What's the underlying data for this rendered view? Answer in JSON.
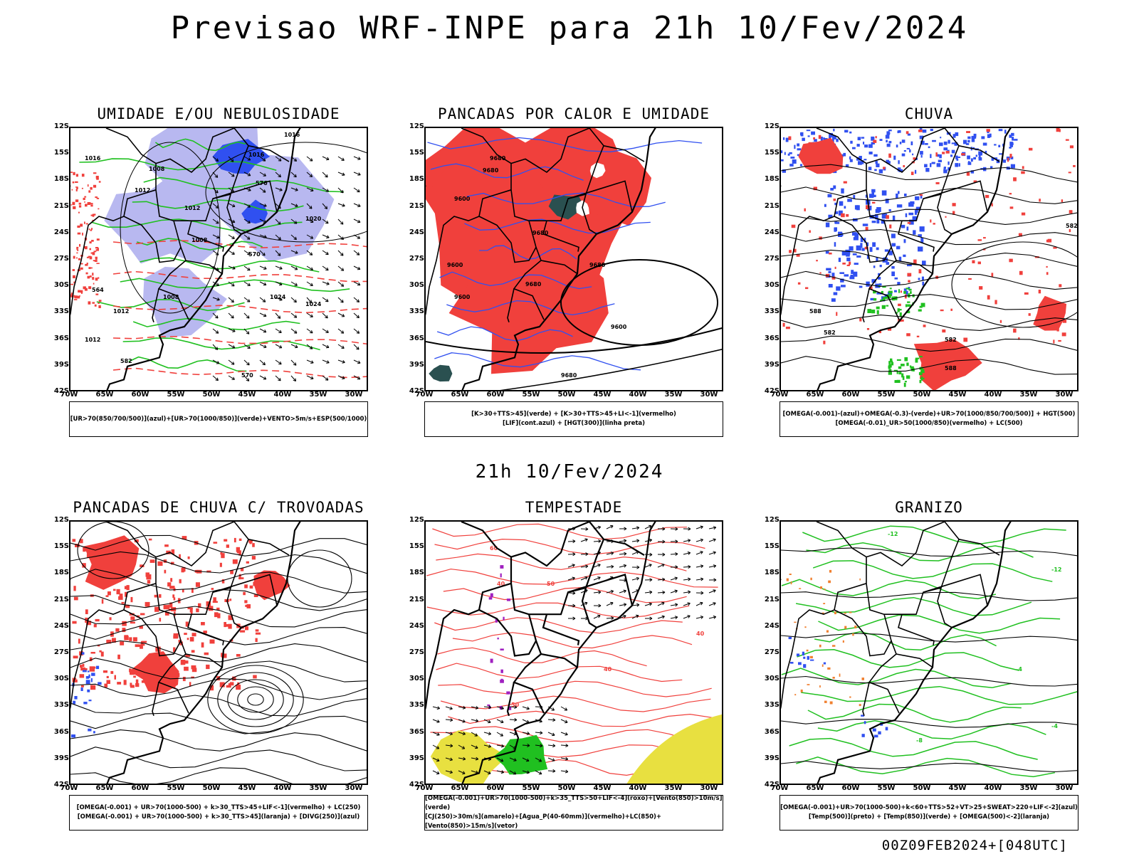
{
  "header": {
    "title": "Previsao WRF-INPE  para 21h 10/Fev/2024",
    "subtitle": "21h 10/Fev/2024",
    "footer": "00Z09FEB2024+[048UTC]"
  },
  "axes": {
    "lat_labels": [
      "12S",
      "15S",
      "18S",
      "21S",
      "24S",
      "27S",
      "30S",
      "33S",
      "36S",
      "39S",
      "42S"
    ],
    "lon_labels": [
      "70W",
      "65W",
      "60W",
      "55W",
      "50W",
      "45W",
      "40W",
      "35W",
      "30W"
    ],
    "lat_values": [
      -12,
      -15,
      -18,
      -21,
      -24,
      -27,
      -30,
      -33,
      -36,
      -39,
      -42
    ],
    "lon_values": [
      -70,
      -65,
      -60,
      -55,
      -50,
      -45,
      -40,
      -35,
      -30
    ]
  },
  "colors": {
    "red": "#f0403c",
    "blue": "#3050f0",
    "lavender": "#b8b8f0",
    "green": "#20c020",
    "darkteal": "#2a5050",
    "yellow": "#e8e040",
    "purple": "#a020c0",
    "orange": "#f08030"
  },
  "panels": [
    {
      "title": "UMIDADE E/OU NEBULOSIDADE",
      "legend": [
        "[UR>70(850/700/500)](azul)+[UR>70(1000/850)](verde)+VENTO>5m/s+ESP(500/1000)"
      ],
      "contour_labels": [
        "1016",
        "1008",
        "1012",
        "1016",
        "1012",
        "1008",
        "1012",
        "1008",
        "1024",
        "1020",
        "1024",
        "1012",
        "1016",
        "576",
        "570",
        "564",
        "582",
        "570"
      ]
    },
    {
      "title": "PANCADAS POR CALOR E UMIDADE",
      "legend": [
        "[K>30+TTS>45](verde) + [K>30+TTS>45+LI<-1](vermelho)",
        "[LIF](cont.azul) + [HGT(300)](linha preta)"
      ],
      "contour_labels": [
        "9680",
        "9680",
        "9600",
        "9680",
        "9600",
        "9680",
        "9600",
        "9680",
        "9600",
        "9680"
      ]
    },
    {
      "title": "CHUVA",
      "legend": [
        "[OMEGA(-0.001)-(azul)+OMEGA(-0.3)-(verde)+UR>70(1000/850/700/500)] + HGT(500)",
        "[OMEGA(-0.01)_UR>50(1000/850)(vermelho) + LC(500)"
      ],
      "contour_labels": [
        "588",
        "582",
        "582",
        "588",
        "582"
      ]
    },
    {
      "title": "PANCADAS DE CHUVA C/ TROVOADAS",
      "legend": [
        "[OMEGA(-0.001) + UR>70(1000-500) + k>30_TTS>45+LIF<-1](vermelho) + LC(250)",
        "[OMEGA(-0.001) + UR>70(1000-500) + k>30_TTS>45](laranja) + [DIVG(250)](azul)"
      ],
      "contour_labels": []
    },
    {
      "title": "TEMPESTADE",
      "legend": [
        "[OMEGA(-0.001)+UR>70(1000-500)+k>35_TTS>50+LIF<-4](roxo)+[Vento(850)>10m/s](verde)",
        "[CJ(250)>30m/s](amarelo)+[Agua_P(40-60mm)](vermelho)+LC(850)+[Vento(850)>15m/s](vetor)"
      ],
      "contour_labels": [
        "60",
        "40",
        "50",
        "40",
        "40",
        "50"
      ]
    },
    {
      "title": "GRANIZO",
      "legend": [
        "[OMEGA(-0.001)+UR>70(1000-500)+k<60+TTS>52+VT>25+SWEAT>220+LIF<-2](azul)",
        "[Temp(500)](preto) + [Temp(850)](verde) + [OMEGA(500)<-2](laranja)"
      ],
      "contour_labels": [
        "-12",
        "-12",
        "-4",
        "-4",
        "-8"
      ]
    }
  ]
}
